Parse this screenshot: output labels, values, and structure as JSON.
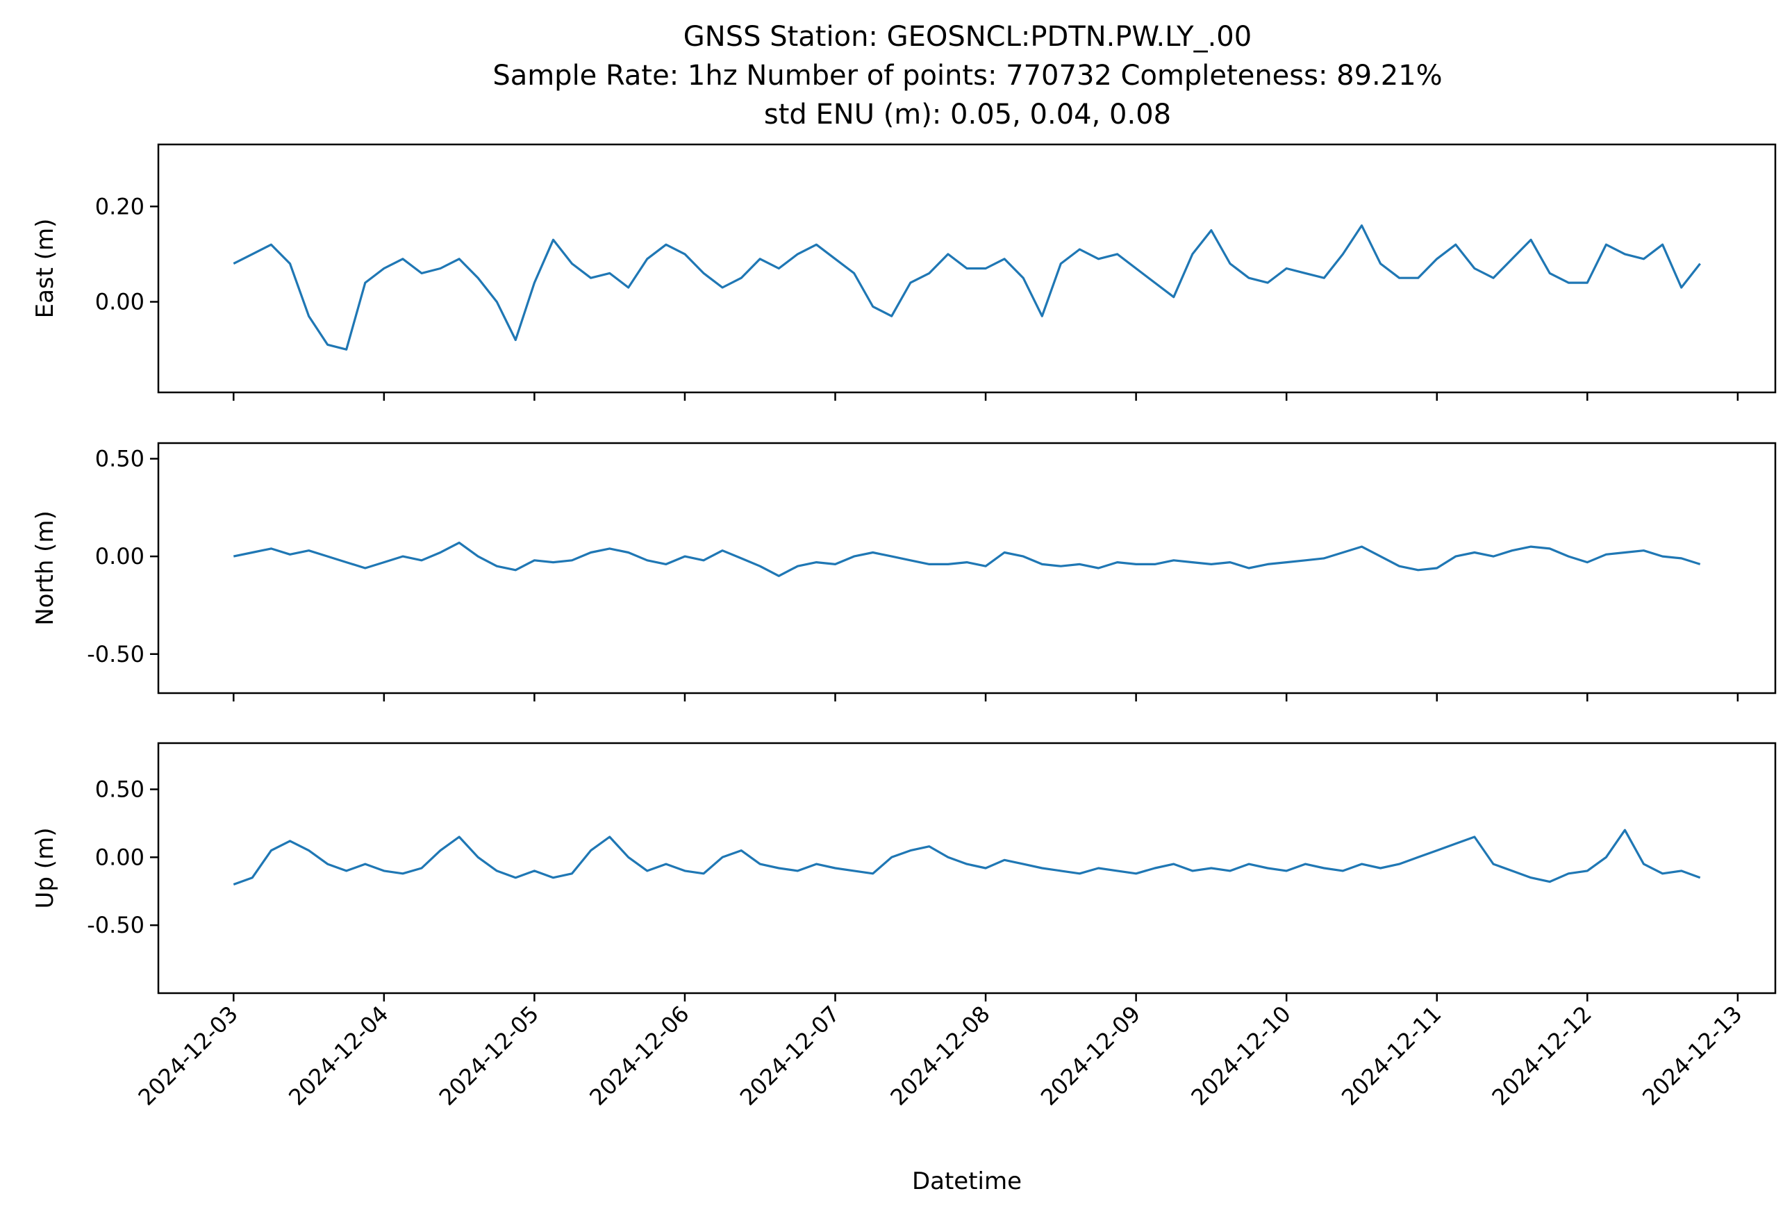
{
  "title": {
    "line1": "GNSS Station: GEOSNCL:PDTN.PW.LY_.00",
    "line2": "Sample Rate: 1hz   Number of points: 770732    Completeness:  89.21%",
    "line3": "std ENU (m):  0.05, 0.04, 0.08"
  },
  "colors": {
    "series": "#1f77b4"
  },
  "chart_data": [
    {
      "type": "line",
      "ylabel": "East (m)",
      "xlabel": "",
      "xlim": [
        "2024-12-02T12:00",
        "2024-12-13T06:00"
      ],
      "ylim": [
        -0.19,
        0.33
      ],
      "yticks": [
        0.0,
        0.2
      ],
      "ytick_labels": [
        "0.00",
        "0.20"
      ],
      "grid": false,
      "series": [
        {
          "x": [
            "2024-12-03T00:00",
            "2024-12-03T03:00",
            "2024-12-03T06:00",
            "2024-12-03T09:00",
            "2024-12-03T12:00",
            "2024-12-03T15:00",
            "2024-12-03T18:00",
            "2024-12-03T21:00",
            "2024-12-04T00:00",
            "2024-12-04T03:00",
            "2024-12-04T06:00",
            "2024-12-04T09:00",
            "2024-12-04T12:00",
            "2024-12-04T15:00",
            "2024-12-04T18:00",
            "2024-12-04T21:00",
            "2024-12-05T00:00",
            "2024-12-05T03:00",
            "2024-12-05T06:00",
            "2024-12-05T09:00",
            "2024-12-05T12:00",
            "2024-12-05T15:00",
            "2024-12-05T18:00",
            "2024-12-05T21:00",
            "2024-12-06T00:00",
            "2024-12-06T03:00",
            "2024-12-06T06:00",
            "2024-12-06T09:00",
            "2024-12-06T12:00",
            "2024-12-06T15:00",
            "2024-12-06T18:00",
            "2024-12-06T21:00",
            "2024-12-07T00:00",
            "2024-12-07T03:00",
            "2024-12-07T06:00",
            "2024-12-07T09:00",
            "2024-12-07T12:00",
            "2024-12-07T15:00",
            "2024-12-07T18:00",
            "2024-12-07T21:00",
            "2024-12-08T00:00",
            "2024-12-08T03:00",
            "2024-12-08T06:00",
            "2024-12-08T09:00",
            "2024-12-08T12:00",
            "2024-12-08T15:00",
            "2024-12-08T18:00",
            "2024-12-08T21:00",
            "2024-12-09T00:00",
            "2024-12-09T03:00",
            "2024-12-09T06:00",
            "2024-12-09T09:00",
            "2024-12-09T12:00",
            "2024-12-09T15:00",
            "2024-12-09T18:00",
            "2024-12-09T21:00",
            "2024-12-10T00:00",
            "2024-12-10T03:00",
            "2024-12-10T06:00",
            "2024-12-10T09:00",
            "2024-12-10T12:00",
            "2024-12-10T15:00",
            "2024-12-10T18:00",
            "2024-12-10T21:00",
            "2024-12-11T00:00",
            "2024-12-11T03:00",
            "2024-12-11T06:00",
            "2024-12-11T09:00",
            "2024-12-11T12:00",
            "2024-12-11T15:00",
            "2024-12-11T18:00",
            "2024-12-11T21:00",
            "2024-12-12T00:00",
            "2024-12-12T03:00",
            "2024-12-12T06:00",
            "2024-12-12T09:00",
            "2024-12-12T12:00",
            "2024-12-12T15:00",
            "2024-12-12T18:00"
          ],
          "y": [
            0.08,
            0.1,
            0.12,
            0.08,
            -0.03,
            -0.09,
            -0.1,
            0.04,
            0.07,
            0.09,
            0.06,
            0.07,
            0.09,
            0.05,
            0.0,
            -0.08,
            0.04,
            0.13,
            0.08,
            0.05,
            0.06,
            0.03,
            0.09,
            0.12,
            0.1,
            0.06,
            0.03,
            0.05,
            0.09,
            0.07,
            0.1,
            0.12,
            0.09,
            0.06,
            -0.01,
            -0.03,
            0.04,
            0.06,
            0.1,
            0.07,
            0.07,
            0.09,
            0.05,
            -0.03,
            0.08,
            0.11,
            0.09,
            0.1,
            0.07,
            0.04,
            0.01,
            0.1,
            0.15,
            0.08,
            0.05,
            0.04,
            0.07,
            0.06,
            0.05,
            0.1,
            0.16,
            0.08,
            0.05,
            0.05,
            0.09,
            0.12,
            0.07,
            0.05,
            0.09,
            0.13,
            0.06,
            0.04,
            0.04,
            0.12,
            0.1,
            0.09,
            0.12,
            0.03,
            0.08
          ]
        }
      ]
    },
    {
      "type": "line",
      "ylabel": "North (m)",
      "xlabel": "",
      "xlim": [
        "2024-12-02T12:00",
        "2024-12-13T06:00"
      ],
      "ylim": [
        -0.7,
        0.58
      ],
      "yticks": [
        -0.5,
        0.0,
        0.5
      ],
      "ytick_labels": [
        "-0.50",
        "0.00",
        "0.50"
      ],
      "grid": false,
      "series": [
        {
          "x": [
            "2024-12-03T00:00",
            "2024-12-03T03:00",
            "2024-12-03T06:00",
            "2024-12-03T09:00",
            "2024-12-03T12:00",
            "2024-12-03T15:00",
            "2024-12-03T18:00",
            "2024-12-03T21:00",
            "2024-12-04T00:00",
            "2024-12-04T03:00",
            "2024-12-04T06:00",
            "2024-12-04T09:00",
            "2024-12-04T12:00",
            "2024-12-04T15:00",
            "2024-12-04T18:00",
            "2024-12-04T21:00",
            "2024-12-05T00:00",
            "2024-12-05T03:00",
            "2024-12-05T06:00",
            "2024-12-05T09:00",
            "2024-12-05T12:00",
            "2024-12-05T15:00",
            "2024-12-05T18:00",
            "2024-12-05T21:00",
            "2024-12-06T00:00",
            "2024-12-06T03:00",
            "2024-12-06T06:00",
            "2024-12-06T09:00",
            "2024-12-06T12:00",
            "2024-12-06T15:00",
            "2024-12-06T18:00",
            "2024-12-06T21:00",
            "2024-12-07T00:00",
            "2024-12-07T03:00",
            "2024-12-07T06:00",
            "2024-12-07T09:00",
            "2024-12-07T12:00",
            "2024-12-07T15:00",
            "2024-12-07T18:00",
            "2024-12-07T21:00",
            "2024-12-08T00:00",
            "2024-12-08T03:00",
            "2024-12-08T06:00",
            "2024-12-08T09:00",
            "2024-12-08T12:00",
            "2024-12-08T15:00",
            "2024-12-08T18:00",
            "2024-12-08T21:00",
            "2024-12-09T00:00",
            "2024-12-09T03:00",
            "2024-12-09T06:00",
            "2024-12-09T09:00",
            "2024-12-09T12:00",
            "2024-12-09T15:00",
            "2024-12-09T18:00",
            "2024-12-09T21:00",
            "2024-12-10T00:00",
            "2024-12-10T03:00",
            "2024-12-10T06:00",
            "2024-12-10T09:00",
            "2024-12-10T12:00",
            "2024-12-10T15:00",
            "2024-12-10T18:00",
            "2024-12-10T21:00",
            "2024-12-11T00:00",
            "2024-12-11T03:00",
            "2024-12-11T06:00",
            "2024-12-11T09:00",
            "2024-12-11T12:00",
            "2024-12-11T15:00",
            "2024-12-11T18:00",
            "2024-12-11T21:00",
            "2024-12-12T00:00",
            "2024-12-12T03:00",
            "2024-12-12T06:00",
            "2024-12-12T09:00",
            "2024-12-12T12:00",
            "2024-12-12T15:00",
            "2024-12-12T18:00"
          ],
          "y": [
            0.0,
            0.02,
            0.04,
            0.01,
            0.03,
            0.0,
            -0.03,
            -0.06,
            -0.03,
            0.0,
            -0.02,
            0.02,
            0.07,
            0.0,
            -0.05,
            -0.07,
            -0.02,
            -0.03,
            -0.02,
            0.02,
            0.04,
            0.02,
            -0.02,
            -0.04,
            0.0,
            -0.02,
            0.03,
            -0.01,
            -0.05,
            -0.1,
            -0.05,
            -0.03,
            -0.04,
            0.0,
            0.02,
            0.0,
            -0.02,
            -0.04,
            -0.04,
            -0.03,
            -0.05,
            0.02,
            0.0,
            -0.04,
            -0.05,
            -0.04,
            -0.06,
            -0.03,
            -0.04,
            -0.04,
            -0.02,
            -0.03,
            -0.04,
            -0.03,
            -0.06,
            -0.04,
            -0.03,
            -0.02,
            -0.01,
            0.02,
            0.05,
            0.0,
            -0.05,
            -0.07,
            -0.06,
            0.0,
            0.02,
            0.0,
            0.03,
            0.05,
            0.04,
            0.0,
            -0.03,
            0.01,
            0.02,
            0.03,
            0.0,
            -0.01,
            -0.04
          ]
        }
      ]
    },
    {
      "type": "line",
      "ylabel": "Up (m)",
      "xlabel": "Datetime",
      "xlim": [
        "2024-12-02T12:00",
        "2024-12-13T06:00"
      ],
      "ylim": [
        -1.0,
        0.84
      ],
      "yticks": [
        -0.5,
        0.0,
        0.5
      ],
      "ytick_labels": [
        "-0.50",
        "0.00",
        "0.50"
      ],
      "xtick_labels": [
        "2024-12-03",
        "2024-12-04",
        "2024-12-05",
        "2024-12-06",
        "2024-12-07",
        "2024-12-08",
        "2024-12-09",
        "2024-12-10",
        "2024-12-11",
        "2024-12-12",
        "2024-12-13"
      ],
      "grid": false,
      "series": [
        {
          "x": [
            "2024-12-03T00:00",
            "2024-12-03T03:00",
            "2024-12-03T06:00",
            "2024-12-03T09:00",
            "2024-12-03T12:00",
            "2024-12-03T15:00",
            "2024-12-03T18:00",
            "2024-12-03T21:00",
            "2024-12-04T00:00",
            "2024-12-04T03:00",
            "2024-12-04T06:00",
            "2024-12-04T09:00",
            "2024-12-04T12:00",
            "2024-12-04T15:00",
            "2024-12-04T18:00",
            "2024-12-04T21:00",
            "2024-12-05T00:00",
            "2024-12-05T03:00",
            "2024-12-05T06:00",
            "2024-12-05T09:00",
            "2024-12-05T12:00",
            "2024-12-05T15:00",
            "2024-12-05T18:00",
            "2024-12-05T21:00",
            "2024-12-06T00:00",
            "2024-12-06T03:00",
            "2024-12-06T06:00",
            "2024-12-06T09:00",
            "2024-12-06T12:00",
            "2024-12-06T15:00",
            "2024-12-06T18:00",
            "2024-12-06T21:00",
            "2024-12-07T00:00",
            "2024-12-07T03:00",
            "2024-12-07T06:00",
            "2024-12-07T09:00",
            "2024-12-07T12:00",
            "2024-12-07T15:00",
            "2024-12-07T18:00",
            "2024-12-07T21:00",
            "2024-12-08T00:00",
            "2024-12-08T03:00",
            "2024-12-08T06:00",
            "2024-12-08T09:00",
            "2024-12-08T12:00",
            "2024-12-08T15:00",
            "2024-12-08T18:00",
            "2024-12-08T21:00",
            "2024-12-09T00:00",
            "2024-12-09T03:00",
            "2024-12-09T06:00",
            "2024-12-09T09:00",
            "2024-12-09T12:00",
            "2024-12-09T15:00",
            "2024-12-09T18:00",
            "2024-12-09T21:00",
            "2024-12-10T00:00",
            "2024-12-10T03:00",
            "2024-12-10T06:00",
            "2024-12-10T09:00",
            "2024-12-10T12:00",
            "2024-12-10T15:00",
            "2024-12-10T18:00",
            "2024-12-10T21:00",
            "2024-12-11T00:00",
            "2024-12-11T03:00",
            "2024-12-11T06:00",
            "2024-12-11T09:00",
            "2024-12-11T12:00",
            "2024-12-11T15:00",
            "2024-12-11T18:00",
            "2024-12-11T21:00",
            "2024-12-12T00:00",
            "2024-12-12T03:00",
            "2024-12-12T06:00",
            "2024-12-12T09:00",
            "2024-12-12T12:00",
            "2024-12-12T15:00",
            "2024-12-12T18:00"
          ],
          "y": [
            -0.2,
            -0.15,
            0.05,
            0.12,
            0.05,
            -0.05,
            -0.1,
            -0.05,
            -0.1,
            -0.12,
            -0.08,
            0.05,
            0.15,
            0.0,
            -0.1,
            -0.15,
            -0.1,
            -0.15,
            -0.12,
            0.05,
            0.15,
            0.0,
            -0.1,
            -0.05,
            -0.1,
            -0.12,
            0.0,
            0.05,
            -0.05,
            -0.08,
            -0.1,
            -0.05,
            -0.08,
            -0.1,
            -0.12,
            0.0,
            0.05,
            0.08,
            0.0,
            -0.05,
            -0.08,
            -0.02,
            -0.05,
            -0.08,
            -0.1,
            -0.12,
            -0.08,
            -0.1,
            -0.12,
            -0.08,
            -0.05,
            -0.1,
            -0.08,
            -0.1,
            -0.05,
            -0.08,
            -0.1,
            -0.05,
            -0.08,
            -0.1,
            -0.05,
            -0.08,
            -0.05,
            0.0,
            0.05,
            0.1,
            0.15,
            -0.05,
            -0.1,
            -0.15,
            -0.18,
            -0.12,
            -0.1,
            0.0,
            0.2,
            -0.05,
            -0.12,
            -0.1,
            -0.15
          ]
        }
      ]
    }
  ]
}
